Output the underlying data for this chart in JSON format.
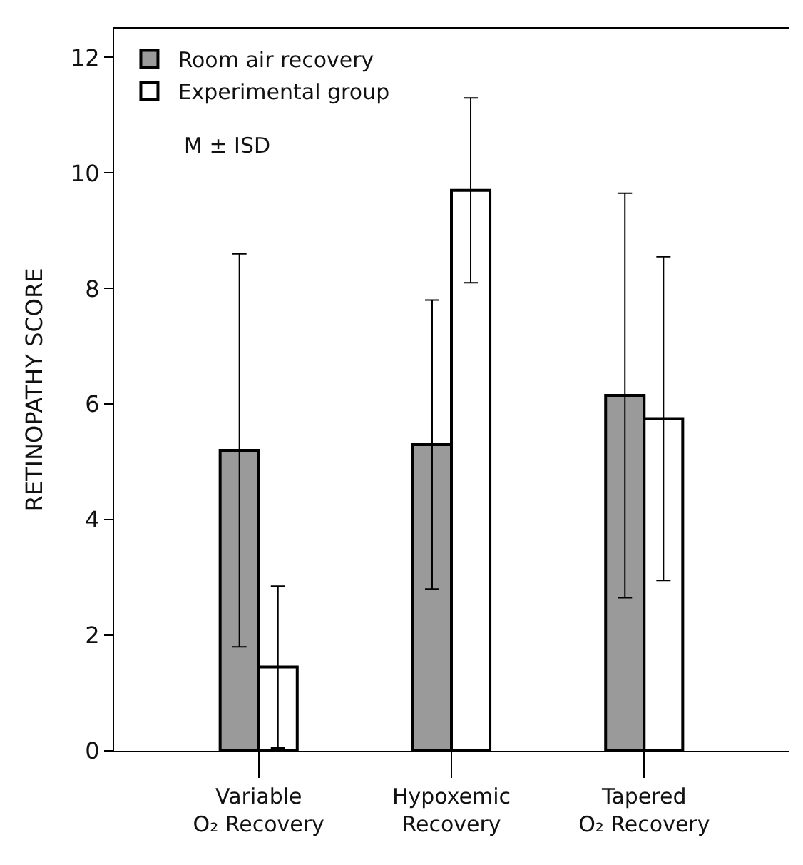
{
  "chart_data": {
    "type": "bar",
    "ylabel": "RETINOPATHY SCORE",
    "categories": [
      "Variable\nO₂ Recovery",
      "Hypoxemic\nRecovery",
      "Tapered\nO₂ Recovery"
    ],
    "series": [
      {
        "name": "Room air recovery",
        "color": "#9a9a9a",
        "values": [
          5.2,
          5.3,
          6.15
        ],
        "errors": [
          3.4,
          2.5,
          3.5
        ]
      },
      {
        "name": "Experimental group",
        "color": "#ffffff",
        "values": [
          1.45,
          9.7,
          5.75
        ],
        "errors": [
          1.4,
          1.6,
          2.8
        ]
      }
    ],
    "ylim": [
      0,
      12.5
    ],
    "yticks": [
      0,
      2,
      4,
      6,
      8,
      10,
      12
    ],
    "grid": false,
    "legend": "top left",
    "annotations": [
      "M ± ISD"
    ]
  }
}
